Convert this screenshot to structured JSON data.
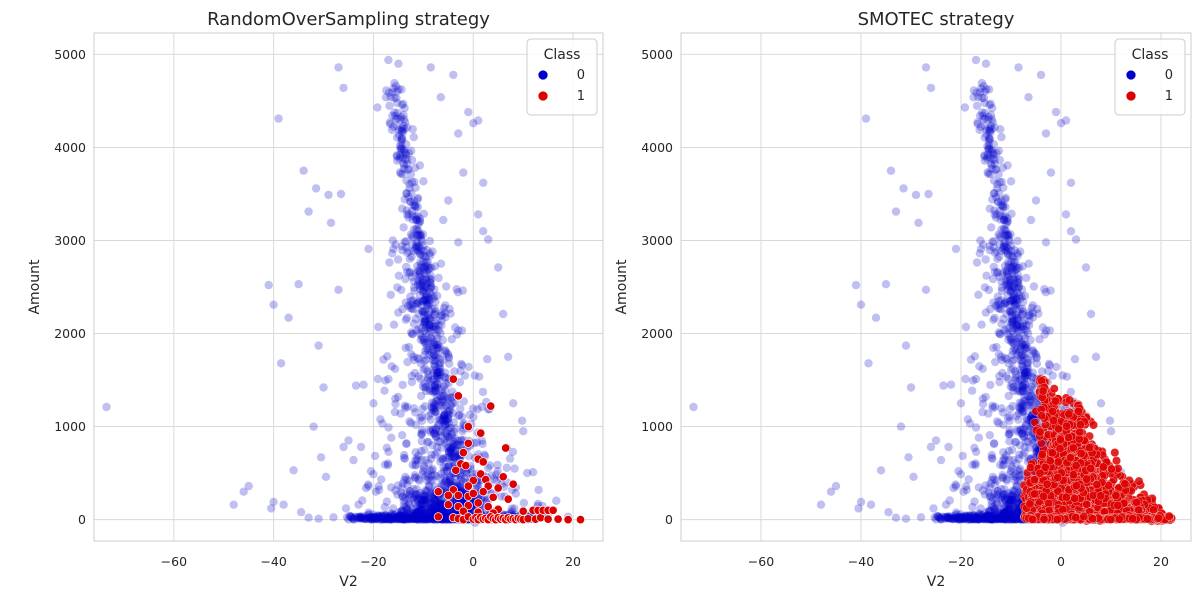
{
  "chart_data": [
    {
      "type": "scatter",
      "title": "RandomOverSampling strategy",
      "xlabel": "V2",
      "ylabel": "Amount",
      "xlim": [
        -76,
        26
      ],
      "ylim": [
        -230,
        5230
      ],
      "xticks": [
        -60,
        -40,
        -20,
        0,
        20
      ],
      "yticks": [
        0,
        1000,
        2000,
        3000,
        4000,
        5000
      ],
      "grid": true,
      "legend": {
        "title": "Class",
        "placement": "top-right",
        "entries": [
          "0",
          "1"
        ]
      },
      "series": [
        {
          "name": "0",
          "color": "#0000cc",
          "points": [
            [
              -73.5,
              1210
            ],
            [
              -48,
              160
            ],
            [
              -46,
              300
            ],
            [
              -45,
              360
            ],
            [
              -41,
              2520
            ],
            [
              -40.5,
              120
            ],
            [
              -40,
              190
            ],
            [
              -40,
              2310
            ],
            [
              -39,
              4310
            ],
            [
              -38.5,
              1680
            ],
            [
              -38,
              160
            ],
            [
              -37,
              2170
            ],
            [
              -36,
              530
            ],
            [
              -35,
              2530
            ],
            [
              -34.5,
              80
            ],
            [
              -34,
              3750
            ],
            [
              -33,
              3310
            ],
            [
              -32,
              1000
            ],
            [
              -31.5,
              3560
            ],
            [
              -31,
              1870
            ],
            [
              -30.5,
              670
            ],
            [
              -30,
              1420
            ],
            [
              -29,
              3490
            ],
            [
              -28.5,
              3190
            ],
            [
              -27,
              4860
            ],
            [
              -26.5,
              3500
            ],
            [
              -26,
              4640
            ],
            [
              -25,
              850
            ],
            [
              -24,
              640
            ],
            [
              -23.5,
              1440
            ],
            [
              -22,
              1450
            ],
            [
              -21,
              2910
            ],
            [
              -20,
              1250
            ],
            [
              -19,
              2070
            ],
            [
              -27,
              2470
            ],
            [
              -26,
              780
            ],
            [
              -29.5,
              460
            ],
            [
              -22.5,
              780
            ],
            [
              -21.5,
              340
            ],
            [
              -33,
              20
            ],
            [
              -31,
              10
            ],
            [
              -28,
              25
            ],
            [
              -25.5,
              120
            ],
            [
              -23,
              160
            ],
            [
              -20.5,
              520
            ],
            [
              -19.5,
              300
            ],
            [
              -18,
              1720
            ],
            [
              -17,
              1510
            ]
          ],
          "ridge": [
            [
              -16,
              4650
            ],
            [
              -15,
              4300
            ],
            [
              -14,
              4000
            ],
            [
              -13,
              3700
            ],
            [
              -12,
              3300
            ],
            [
              -11,
              3000
            ],
            [
              -10,
              2700
            ],
            [
              -9.5,
              2400
            ],
            [
              -9,
              2150
            ],
            [
              -8,
              1900
            ],
            [
              -7.5,
              1650
            ],
            [
              -7,
              1400
            ],
            [
              -6,
              1150
            ],
            [
              -5,
              900
            ],
            [
              -4,
              650
            ],
            [
              -3,
              400
            ],
            [
              -2,
              200
            ],
            [
              0,
              30
            ]
          ],
          "stragglers": [
            [
              -17,
              4940
            ],
            [
              -15,
              4900
            ],
            [
              -8.5,
              4860
            ],
            [
              -6.5,
              4540
            ],
            [
              -4,
              4780
            ],
            [
              -3,
              4150
            ],
            [
              -1,
              4380
            ],
            [
              0,
              4260
            ],
            [
              1,
              4290
            ],
            [
              -2,
              3730
            ],
            [
              2,
              3620
            ],
            [
              -5,
              3430
            ],
            [
              1,
              3280
            ],
            [
              3,
              3010
            ],
            [
              2,
              3100
            ],
            [
              -3,
              2980
            ],
            [
              -6,
              3220
            ],
            [
              5,
              2710
            ],
            [
              -11,
              2330
            ],
            [
              6,
              2210
            ],
            [
              7,
              1750
            ],
            [
              8,
              1250
            ],
            [
              10,
              950
            ],
            [
              12,
              510
            ],
            [
              13,
              170
            ],
            [
              15,
              60
            ],
            [
              19,
              30
            ]
          ],
          "band_count": 720
        },
        {
          "name": "1",
          "color": "#dd0000",
          "points": [
            [
              -4,
              1510
            ],
            [
              -3,
              1330
            ],
            [
              3.5,
              1220
            ],
            [
              -1,
              1000
            ],
            [
              1.5,
              930
            ],
            [
              -1,
              820
            ],
            [
              -2,
              720
            ],
            [
              6.5,
              770
            ],
            [
              -2.5,
              600
            ],
            [
              1,
              650
            ],
            [
              2,
              620
            ],
            [
              -3.5,
              530
            ],
            [
              -1.5,
              580
            ],
            [
              1.5,
              490
            ],
            [
              0,
              420
            ],
            [
              2.5,
              430
            ],
            [
              6,
              460
            ],
            [
              -4,
              320
            ],
            [
              -1,
              360
            ],
            [
              3,
              360
            ],
            [
              5,
              340
            ],
            [
              8,
              380
            ],
            [
              -7,
              300
            ],
            [
              -5,
              260
            ],
            [
              -3,
              260
            ],
            [
              -1,
              250
            ],
            [
              0,
              280
            ],
            [
              2,
              300
            ],
            [
              4,
              240
            ],
            [
              7,
              220
            ],
            [
              -5,
              160
            ],
            [
              -3,
              140
            ],
            [
              -1,
              150
            ],
            [
              1,
              180
            ],
            [
              3,
              140
            ],
            [
              5,
              110
            ],
            [
              -2,
              90
            ],
            [
              1,
              80
            ],
            [
              4,
              70
            ],
            [
              -7,
              30
            ],
            [
              -4,
              20
            ],
            [
              -3,
              10
            ],
            [
              -2,
              0
            ],
            [
              -1,
              30
            ],
            [
              0,
              5
            ],
            [
              0.5,
              20
            ],
            [
              1,
              0
            ],
            [
              1.5,
              25
            ],
            [
              2,
              5
            ],
            [
              2.5,
              15
            ],
            [
              3,
              0
            ],
            [
              3.5,
              30
            ],
            [
              4,
              10
            ],
            [
              4.5,
              0
            ],
            [
              5,
              20
            ],
            [
              5.5,
              5
            ],
            [
              6,
              15
            ],
            [
              6.5,
              0
            ],
            [
              7,
              20
            ],
            [
              7.5,
              5
            ],
            [
              8,
              10
            ],
            [
              8.5,
              0
            ],
            [
              9,
              15
            ],
            [
              9.5,
              5
            ],
            [
              10,
              0
            ],
            [
              10,
              90
            ],
            [
              11,
              10
            ],
            [
              12,
              100
            ],
            [
              12.5,
              5
            ],
            [
              13,
              100
            ],
            [
              13.5,
              20
            ],
            [
              14,
              100
            ],
            [
              15,
              5
            ],
            [
              15,
              100
            ],
            [
              16,
              100
            ],
            [
              17,
              5
            ],
            [
              19,
              0
            ],
            [
              21.5,
              0
            ]
          ]
        }
      ]
    },
    {
      "type": "scatter",
      "title": "SMOTEC strategy",
      "xlabel": "V2",
      "ylabel": "Amount",
      "xlim": [
        -76,
        26
      ],
      "ylim": [
        -230,
        5230
      ],
      "xticks": [
        -60,
        -40,
        -20,
        0,
        20
      ],
      "yticks": [
        0,
        1000,
        2000,
        3000,
        4000,
        5000
      ],
      "grid": true,
      "legend": {
        "title": "Class",
        "placement": "top-right",
        "entries": [
          "0",
          "1"
        ]
      },
      "series": [
        {
          "name": "0",
          "color": "#0000cc",
          "same_as_left_panel": true
        },
        {
          "name": "1",
          "color": "#dd0000",
          "anchors": [
            [
              -4,
              1510
            ],
            [
              -3,
              1330
            ],
            [
              3.5,
              1220
            ],
            [
              -1,
              1000
            ],
            [
              1.5,
              930
            ],
            [
              -1,
              820
            ],
            [
              -2,
              720
            ],
            [
              6.5,
              770
            ],
            [
              -2.5,
              600
            ],
            [
              1,
              650
            ],
            [
              2,
              620
            ],
            [
              -3.5,
              530
            ],
            [
              6,
              460
            ],
            [
              8,
              380
            ],
            [
              -7,
              300
            ],
            [
              4,
              240
            ],
            [
              7,
              220
            ],
            [
              10,
              90
            ],
            [
              12,
              100
            ],
            [
              14,
              100
            ],
            [
              16,
              100
            ],
            [
              19,
              0
            ],
            [
              21.5,
              0
            ],
            [
              -7,
              30
            ],
            [
              -4,
              20
            ],
            [
              0,
              5
            ],
            [
              5,
              20
            ]
          ],
          "synthetic_count": 1700
        }
      ]
    }
  ]
}
